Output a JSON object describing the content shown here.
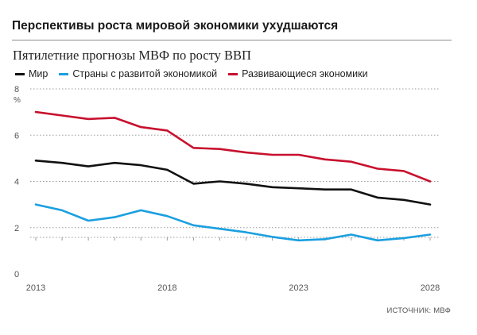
{
  "header": {
    "title": "Перспективы роста мировой экономики ухудшаются"
  },
  "chart_data": {
    "type": "line",
    "title": "Пятилетние прогнозы МВФ по росту ВВП",
    "y_unit": "%",
    "xlabel": "",
    "ylabel": "",
    "x": [
      2013,
      2014,
      2015,
      2016,
      2017,
      2018,
      2019,
      2020,
      2021,
      2022,
      2023,
      2024,
      2025,
      2026,
      2027,
      2028
    ],
    "xlim": [
      2013,
      2028
    ],
    "ylim": [
      0,
      8
    ],
    "x_ticks": [
      "2013",
      "2018",
      "2023",
      "2028"
    ],
    "y_ticks": [
      "0",
      "2",
      "4",
      "6",
      "8"
    ],
    "grid": "horizontal",
    "legend_position": "top-left",
    "series": [
      {
        "name": "Мир",
        "color": "#111111",
        "values": [
          4.9,
          4.8,
          4.65,
          4.8,
          4.7,
          4.5,
          3.9,
          4.0,
          3.9,
          3.75,
          3.7,
          3.65,
          3.65,
          3.3,
          3.2,
          3.0
        ]
      },
      {
        "name": "Страны с развитой экономикой",
        "color": "#1a9fe0",
        "values": [
          3.0,
          2.75,
          2.3,
          2.45,
          2.75,
          2.5,
          2.1,
          1.95,
          1.8,
          1.6,
          1.45,
          1.5,
          1.7,
          1.45,
          1.55,
          1.7
        ]
      },
      {
        "name": "Развивающиеся экономики",
        "color": "#c8102e",
        "values": [
          7.0,
          6.85,
          6.7,
          6.75,
          6.35,
          6.2,
          5.45,
          5.4,
          5.25,
          5.15,
          5.15,
          4.95,
          4.85,
          4.55,
          4.45,
          4.0
        ]
      }
    ]
  },
  "source": "ИСТОЧНИК: МВФ"
}
